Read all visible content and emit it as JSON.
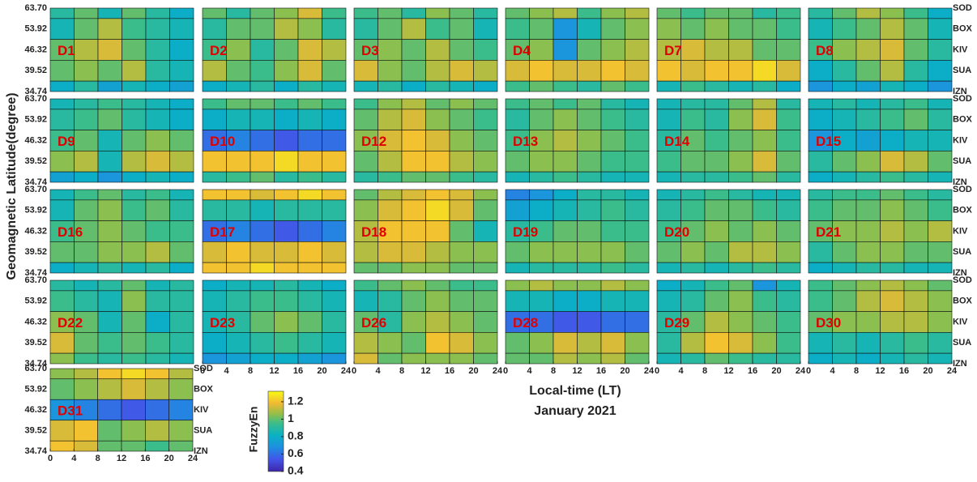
{
  "chart_data": {
    "type": "heatmap",
    "y_label": "Geomagnetic Latitude(degree)",
    "x_label": "Local-time (LT)",
    "subtitle": "January 2021",
    "colorbar_label": "FuzzyEn",
    "lat_labels": [
      "63.70",
      "53.92",
      "46.32",
      "39.52",
      "34.74"
    ],
    "stations": [
      "SOD",
      "BOX",
      "KIV",
      "SUA",
      "IZN"
    ],
    "x": [
      2,
      6,
      10,
      14,
      18,
      22
    ],
    "xlim": [
      0,
      24
    ],
    "xticks": [
      0,
      4,
      8,
      12,
      16,
      20,
      24
    ],
    "clim": [
      0.4,
      1.32
    ],
    "cticks": [
      0.4,
      0.6,
      0.8,
      1,
      1.2
    ],
    "panels": [
      {
        "label": "D1",
        "values": [
          [
            0.9,
            1.0,
            0.85,
            1.0,
            0.9,
            0.8
          ],
          [
            0.85,
            1.0,
            1.1,
            0.95,
            0.9,
            0.85
          ],
          [
            1.0,
            1.1,
            1.15,
            1.0,
            0.9,
            0.8
          ],
          [
            1.0,
            1.05,
            1.0,
            1.1,
            0.9,
            0.85
          ],
          [
            0.8,
            0.9,
            0.75,
            0.85,
            0.8,
            0.75
          ]
        ]
      },
      {
        "label": "D2",
        "values": [
          [
            1.0,
            0.9,
            1.0,
            1.05,
            1.15,
            0.95
          ],
          [
            0.9,
            1.0,
            1.0,
            1.1,
            1.05,
            0.9
          ],
          [
            0.95,
            1.05,
            0.9,
            1.0,
            1.15,
            1.1
          ],
          [
            1.1,
            1.0,
            0.95,
            1.05,
            1.15,
            1.0
          ],
          [
            0.8,
            0.85,
            0.9,
            0.8,
            0.9,
            0.85
          ]
        ]
      },
      {
        "label": "D3",
        "values": [
          [
            0.95,
            1.0,
            0.9,
            1.05,
            1.0,
            0.9
          ],
          [
            0.9,
            1.0,
            1.1,
            0.95,
            1.0,
            0.85
          ],
          [
            1.0,
            1.05,
            1.0,
            1.1,
            1.0,
            0.95
          ],
          [
            1.15,
            1.05,
            1.0,
            1.1,
            1.15,
            1.1
          ],
          [
            0.85,
            0.9,
            0.8,
            0.9,
            0.85,
            0.8
          ]
        ]
      },
      {
        "label": "D4",
        "values": [
          [
            1.0,
            1.05,
            1.1,
            0.95,
            1.05,
            1.1
          ],
          [
            0.95,
            1.0,
            0.7,
            0.85,
            1.0,
            1.05
          ],
          [
            1.0,
            1.05,
            0.7,
            1.0,
            1.05,
            1.1
          ],
          [
            1.15,
            1.2,
            1.15,
            1.15,
            1.2,
            1.15
          ],
          [
            0.95,
            1.0,
            0.95,
            0.9,
            1.0,
            0.95
          ]
        ]
      },
      {
        "label": "D7",
        "values": [
          [
            1.0,
            0.95,
            1.0,
            1.0,
            0.9,
            0.95
          ],
          [
            1.05,
            1.0,
            1.05,
            1.0,
            1.0,
            0.95
          ],
          [
            1.1,
            1.15,
            1.1,
            1.1,
            1.0,
            1.0
          ],
          [
            1.2,
            1.15,
            1.2,
            1.2,
            1.25,
            1.15
          ],
          [
            0.85,
            0.95,
            0.9,
            0.85,
            0.9,
            0.8
          ]
        ]
      },
      {
        "label": "D8",
        "values": [
          [
            0.9,
            1.0,
            1.1,
            1.05,
            0.95,
            0.8
          ],
          [
            0.85,
            0.95,
            1.0,
            1.1,
            1.0,
            0.85
          ],
          [
            0.95,
            1.05,
            1.1,
            1.15,
            1.0,
            0.9
          ],
          [
            0.8,
            0.9,
            1.0,
            1.1,
            0.9,
            0.8
          ],
          [
            0.7,
            0.8,
            0.75,
            0.85,
            0.8,
            0.7
          ]
        ]
      },
      {
        "label": "D9",
        "values": [
          [
            0.85,
            0.9,
            0.95,
            0.9,
            0.85,
            0.8
          ],
          [
            0.9,
            0.95,
            1.0,
            0.9,
            0.85,
            0.8
          ],
          [
            0.95,
            1.0,
            0.85,
            1.0,
            1.05,
            1.0
          ],
          [
            1.05,
            1.1,
            0.85,
            1.1,
            1.15,
            1.1
          ],
          [
            0.75,
            0.8,
            0.7,
            0.8,
            0.85,
            0.8
          ]
        ]
      },
      {
        "label": "D10",
        "values": [
          [
            0.95,
            1.0,
            1.0,
            0.95,
            1.0,
            0.95
          ],
          [
            0.8,
            0.85,
            0.85,
            0.8,
            0.85,
            0.8
          ],
          [
            0.6,
            0.65,
            0.6,
            0.55,
            0.6,
            0.6
          ],
          [
            1.2,
            1.2,
            1.2,
            1.25,
            1.2,
            1.2
          ],
          [
            0.9,
            0.95,
            1.0,
            0.9,
            0.95,
            0.9
          ]
        ]
      },
      {
        "label": "D12",
        "values": [
          [
            0.95,
            1.05,
            1.1,
            1.0,
            1.05,
            1.0
          ],
          [
            1.0,
            1.1,
            1.15,
            1.05,
            1.0,
            0.95
          ],
          [
            1.05,
            1.15,
            1.2,
            1.15,
            1.05,
            1.0
          ],
          [
            1.0,
            1.1,
            1.2,
            1.2,
            1.1,
            1.05
          ],
          [
            0.9,
            0.95,
            1.0,
            1.0,
            0.95,
            0.9
          ]
        ]
      },
      {
        "label": "D13",
        "values": [
          [
            0.95,
            1.0,
            0.95,
            1.0,
            0.9,
            0.85
          ],
          [
            0.9,
            1.0,
            1.05,
            1.0,
            0.95,
            0.9
          ],
          [
            0.95,
            1.05,
            1.1,
            1.05,
            1.0,
            0.95
          ],
          [
            1.0,
            1.05,
            1.05,
            1.0,
            0.95,
            0.95
          ],
          [
            0.85,
            0.9,
            0.95,
            0.9,
            0.85,
            0.85
          ]
        ]
      },
      {
        "label": "D14",
        "values": [
          [
            0.85,
            0.9,
            0.9,
            1.0,
            1.1,
            0.9
          ],
          [
            0.85,
            0.95,
            0.9,
            1.05,
            1.15,
            0.95
          ],
          [
            0.9,
            1.0,
            0.95,
            1.0,
            1.05,
            0.95
          ],
          [
            0.95,
            1.0,
            1.0,
            1.05,
            1.15,
            1.0
          ],
          [
            0.85,
            0.9,
            0.9,
            0.95,
            1.0,
            0.9
          ]
        ]
      },
      {
        "label": "D15",
        "values": [
          [
            0.85,
            0.9,
            0.85,
            0.9,
            0.95,
            0.85
          ],
          [
            0.8,
            0.85,
            0.9,
            0.95,
            1.0,
            0.9
          ],
          [
            0.7,
            0.8,
            0.75,
            0.8,
            0.85,
            0.85
          ],
          [
            0.9,
            1.0,
            1.05,
            1.15,
            1.1,
            1.0
          ],
          [
            0.8,
            0.85,
            0.9,
            0.95,
            0.9,
            0.85
          ]
        ]
      },
      {
        "label": "D16",
        "values": [
          [
            0.85,
            0.95,
            1.0,
            0.9,
            0.95,
            0.85
          ],
          [
            0.85,
            1.0,
            1.05,
            0.95,
            1.0,
            0.9
          ],
          [
            0.95,
            1.0,
            1.05,
            1.0,
            0.95,
            0.95
          ],
          [
            1.0,
            1.0,
            1.05,
            1.05,
            1.1,
            1.0
          ],
          [
            0.8,
            0.85,
            0.9,
            0.85,
            0.9,
            0.8
          ]
        ]
      },
      {
        "label": "D17",
        "values": [
          [
            1.2,
            1.2,
            1.15,
            1.2,
            1.25,
            1.2
          ],
          [
            0.9,
            0.9,
            0.85,
            0.9,
            0.9,
            0.9
          ],
          [
            0.6,
            0.65,
            0.6,
            0.55,
            0.6,
            0.65
          ],
          [
            1.15,
            1.2,
            1.15,
            1.15,
            1.2,
            1.15
          ],
          [
            1.2,
            1.2,
            1.25,
            1.2,
            1.2,
            1.2
          ]
        ]
      },
      {
        "label": "D18",
        "values": [
          [
            1.0,
            1.1,
            1.15,
            1.2,
            1.15,
            1.05
          ],
          [
            1.05,
            1.15,
            1.2,
            1.25,
            1.15,
            1.0
          ],
          [
            1.1,
            1.2,
            1.2,
            1.2,
            1.0,
            0.85
          ],
          [
            1.1,
            1.15,
            1.15,
            1.1,
            1.05,
            1.05
          ],
          [
            1.0,
            1.0,
            1.05,
            1.05,
            1.0,
            1.0
          ]
        ]
      },
      {
        "label": "D19",
        "values": [
          [
            0.65,
            0.7,
            0.8,
            0.9,
            0.9,
            0.85
          ],
          [
            0.75,
            0.8,
            0.85,
            0.9,
            0.95,
            0.9
          ],
          [
            0.9,
            0.95,
            1.0,
            1.0,
            0.95,
            0.95
          ],
          [
            1.0,
            1.05,
            1.05,
            1.05,
            1.05,
            1.0
          ],
          [
            0.85,
            0.9,
            0.9,
            0.9,
            0.95,
            0.9
          ]
        ]
      },
      {
        "label": "D20",
        "values": [
          [
            0.85,
            0.9,
            0.95,
            0.9,
            0.85,
            0.85
          ],
          [
            0.9,
            0.95,
            1.0,
            1.0,
            0.95,
            0.9
          ],
          [
            0.95,
            1.0,
            1.05,
            1.0,
            1.05,
            1.0
          ],
          [
            1.0,
            1.05,
            1.0,
            1.1,
            1.1,
            1.05
          ],
          [
            0.85,
            0.9,
            0.85,
            0.9,
            0.95,
            0.9
          ]
        ]
      },
      {
        "label": "D21",
        "values": [
          [
            0.9,
            0.95,
            0.95,
            1.0,
            0.95,
            0.9
          ],
          [
            0.95,
            1.0,
            1.0,
            1.05,
            1.0,
            0.95
          ],
          [
            1.0,
            1.05,
            1.05,
            1.1,
            1.05,
            1.1
          ],
          [
            0.9,
            1.0,
            1.05,
            1.05,
            1.0,
            1.0
          ],
          [
            0.8,
            0.85,
            0.9,
            0.9,
            0.85,
            0.85
          ]
        ]
      },
      {
        "label": "D22",
        "values": [
          [
            0.9,
            0.85,
            0.9,
            1.0,
            0.85,
            0.9
          ],
          [
            0.95,
            0.9,
            0.85,
            1.05,
            0.9,
            0.9
          ],
          [
            1.05,
            1.0,
            0.85,
            1.0,
            0.8,
            0.9
          ],
          [
            1.15,
            1.0,
            0.95,
            1.0,
            0.95,
            0.9
          ],
          [
            1.05,
            0.95,
            0.9,
            0.95,
            0.9,
            0.85
          ]
        ]
      },
      {
        "label": "D23",
        "values": [
          [
            0.8,
            0.85,
            0.85,
            0.9,
            0.85,
            0.8
          ],
          [
            0.85,
            0.9,
            0.95,
            0.95,
            0.9,
            0.85
          ],
          [
            0.85,
            0.9,
            1.0,
            1.05,
            1.0,
            0.9
          ],
          [
            0.8,
            0.85,
            0.9,
            0.95,
            0.9,
            0.85
          ],
          [
            0.7,
            0.75,
            0.8,
            0.8,
            0.75,
            0.7
          ]
        ]
      },
      {
        "label": "D26",
        "values": [
          [
            0.95,
            1.0,
            1.05,
            1.0,
            0.95,
            0.95
          ],
          [
            0.85,
            0.9,
            1.0,
            1.05,
            1.0,
            1.0
          ],
          [
            1.0,
            0.9,
            1.05,
            1.1,
            1.05,
            1.0
          ],
          [
            1.1,
            1.05,
            1.0,
            1.2,
            1.15,
            1.05
          ],
          [
            1.15,
            1.0,
            1.05,
            1.05,
            1.05,
            1.0
          ]
        ]
      },
      {
        "label": "D28",
        "values": [
          [
            1.05,
            1.1,
            1.05,
            1.05,
            1.1,
            1.05
          ],
          [
            0.85,
            0.85,
            0.8,
            0.8,
            0.85,
            0.85
          ],
          [
            0.6,
            0.6,
            0.55,
            0.55,
            0.6,
            0.6
          ],
          [
            1.0,
            1.05,
            1.15,
            1.1,
            1.15,
            1.05
          ],
          [
            1.0,
            1.0,
            1.1,
            1.05,
            1.1,
            1.0
          ]
        ]
      },
      {
        "label": "D29",
        "values": [
          [
            0.8,
            0.85,
            0.95,
            1.0,
            0.7,
            0.85
          ],
          [
            0.85,
            0.9,
            1.0,
            1.05,
            0.95,
            0.9
          ],
          [
            0.9,
            1.0,
            1.1,
            1.05,
            1.0,
            0.95
          ],
          [
            0.9,
            1.1,
            1.2,
            1.15,
            1.05,
            0.95
          ],
          [
            0.85,
            0.9,
            1.0,
            0.95,
            0.9,
            0.9
          ]
        ]
      },
      {
        "label": "D30",
        "values": [
          [
            0.95,
            1.0,
            1.05,
            1.1,
            1.05,
            1.0
          ],
          [
            0.95,
            1.0,
            1.1,
            1.15,
            1.1,
            1.05
          ],
          [
            1.0,
            1.05,
            1.05,
            1.1,
            1.1,
            1.05
          ],
          [
            0.85,
            0.9,
            0.85,
            0.9,
            0.95,
            0.9
          ],
          [
            0.8,
            0.85,
            0.8,
            0.85,
            0.9,
            0.85
          ]
        ]
      },
      {
        "label": "D31",
        "values": [
          [
            1.05,
            1.1,
            1.2,
            1.25,
            1.2,
            1.1
          ],
          [
            1.0,
            1.05,
            1.1,
            1.15,
            1.1,
            1.05
          ],
          [
            0.7,
            0.65,
            0.6,
            0.55,
            0.6,
            0.65
          ],
          [
            1.15,
            1.2,
            1.0,
            1.05,
            1.1,
            1.05
          ],
          [
            1.2,
            1.15,
            1.0,
            1.0,
            0.95,
            1.0
          ]
        ]
      }
    ]
  }
}
